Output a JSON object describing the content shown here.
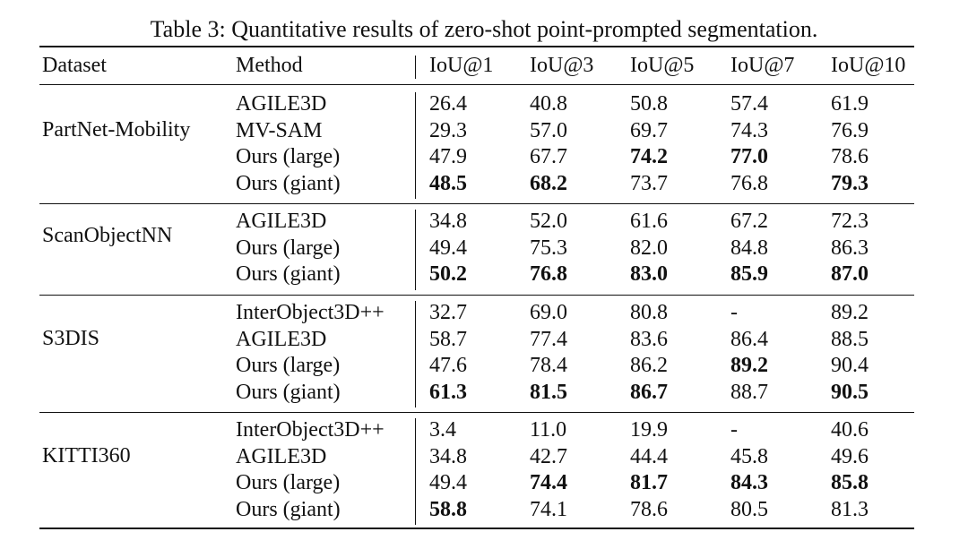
{
  "caption": "Table 3: Quantitative results of zero-shot point-prompted segmentation.",
  "headers": [
    "Dataset",
    "Method",
    "IoU@1",
    "IoU@3",
    "IoU@5",
    "IoU@7",
    "IoU@10"
  ],
  "groups": [
    {
      "dataset": "PartNet-Mobility",
      "rows": [
        {
          "method": "AGILE3D",
          "values": [
            "26.4",
            "40.8",
            "50.8",
            "57.4",
            "61.9"
          ],
          "bold": [
            false,
            false,
            false,
            false,
            false
          ]
        },
        {
          "method": "MV-SAM",
          "values": [
            "29.3",
            "57.0",
            "69.7",
            "74.3",
            "76.9"
          ],
          "bold": [
            false,
            false,
            false,
            false,
            false
          ]
        },
        {
          "method": "Ours (large)",
          "values": [
            "47.9",
            "67.7",
            "74.2",
            "77.0",
            "78.6"
          ],
          "bold": [
            false,
            false,
            true,
            true,
            false
          ]
        },
        {
          "method": "Ours (giant)",
          "values": [
            "48.5",
            "68.2",
            "73.7",
            "76.8",
            "79.3"
          ],
          "bold": [
            true,
            true,
            false,
            false,
            true
          ]
        }
      ]
    },
    {
      "dataset": "ScanObjectNN",
      "rows": [
        {
          "method": "AGILE3D",
          "values": [
            "34.8",
            "52.0",
            "61.6",
            "67.2",
            "72.3"
          ],
          "bold": [
            false,
            false,
            false,
            false,
            false
          ]
        },
        {
          "method": "Ours (large)",
          "values": [
            "49.4",
            "75.3",
            "82.0",
            "84.8",
            "86.3"
          ],
          "bold": [
            false,
            false,
            false,
            false,
            false
          ]
        },
        {
          "method": "Ours (giant)",
          "values": [
            "50.2",
            "76.8",
            "83.0",
            "85.9",
            "87.0"
          ],
          "bold": [
            true,
            true,
            true,
            true,
            true
          ]
        }
      ]
    },
    {
      "dataset": "S3DIS",
      "rows": [
        {
          "method": "InterObject3D++",
          "values": [
            "32.7",
            "69.0",
            "80.8",
            "-",
            "89.2"
          ],
          "bold": [
            false,
            false,
            false,
            false,
            false
          ]
        },
        {
          "method": "AGILE3D",
          "values": [
            "58.7",
            "77.4",
            "83.6",
            "86.4",
            "88.5"
          ],
          "bold": [
            false,
            false,
            false,
            false,
            false
          ]
        },
        {
          "method": "Ours (large)",
          "values": [
            "47.6",
            "78.4",
            "86.2",
            "89.2",
            "90.4"
          ],
          "bold": [
            false,
            false,
            false,
            true,
            false
          ]
        },
        {
          "method": "Ours (giant)",
          "values": [
            "61.3",
            "81.5",
            "86.7",
            "88.7",
            "90.5"
          ],
          "bold": [
            true,
            true,
            true,
            false,
            true
          ]
        }
      ]
    },
    {
      "dataset": "KITTI360",
      "rows": [
        {
          "method": "InterObject3D++",
          "values": [
            "3.4",
            "11.0",
            "19.9",
            "-",
            "40.6"
          ],
          "bold": [
            false,
            false,
            false,
            false,
            false
          ]
        },
        {
          "method": "AGILE3D",
          "values": [
            "34.8",
            "42.7",
            "44.4",
            "45.8",
            "49.6"
          ],
          "bold": [
            false,
            false,
            false,
            false,
            false
          ]
        },
        {
          "method": "Ours (large)",
          "values": [
            "49.4",
            "74.4",
            "81.7",
            "84.3",
            "85.8"
          ],
          "bold": [
            false,
            true,
            true,
            true,
            true
          ]
        },
        {
          "method": "Ours (giant)",
          "values": [
            "58.8",
            "74.1",
            "78.6",
            "80.5",
            "81.3"
          ],
          "bold": [
            true,
            false,
            false,
            false,
            false
          ]
        }
      ]
    }
  ]
}
